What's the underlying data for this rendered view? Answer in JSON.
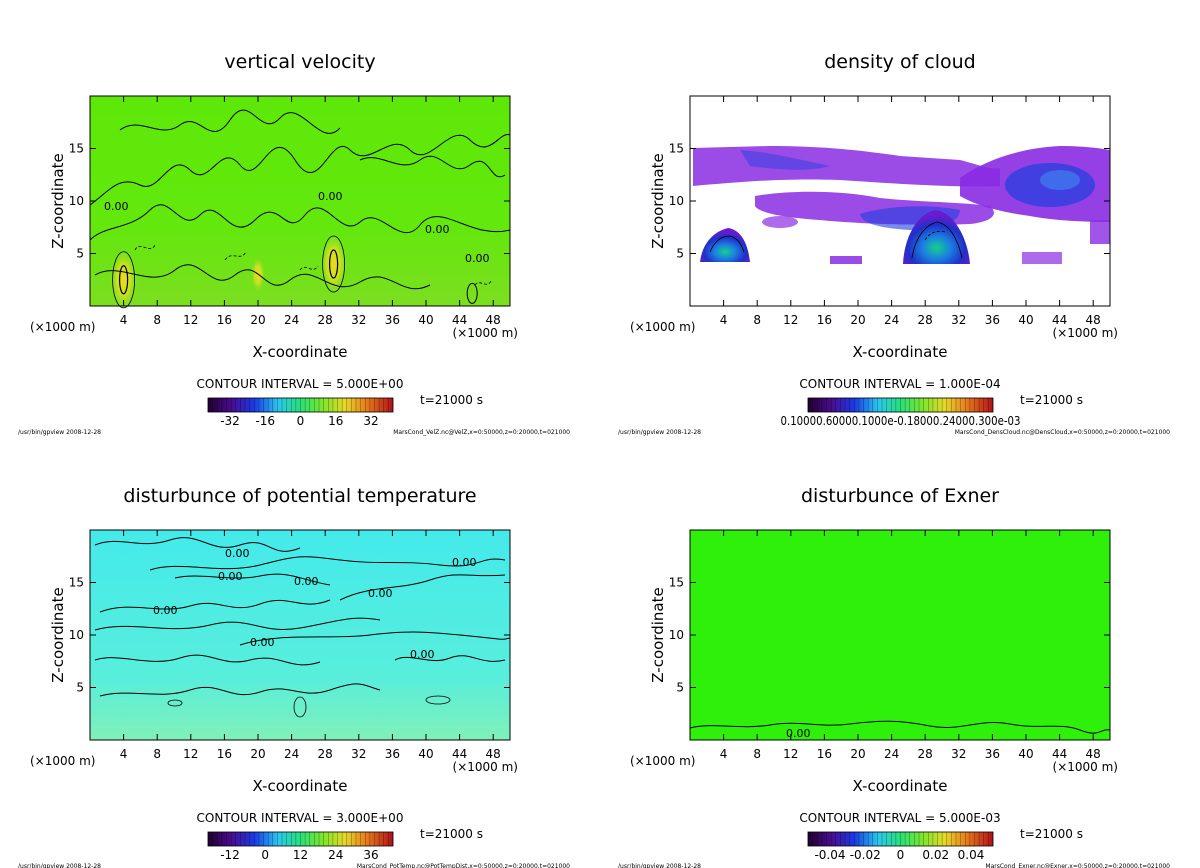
{
  "panels": [
    {
      "id": "velz",
      "title": "vertical velocity",
      "xlabel": "X-coordinate",
      "ylabel": "Z-coordinate",
      "x_unit": "(×1000 m)",
      "y_unit": "(×1000 m)",
      "contour_interval": "CONTOUR INTERVAL = 5.000E+00",
      "time": "t=21000 s",
      "footer_left": "/usr/bin/gpview  2008-12-28",
      "footer_right": "MarsCond_VelZ.nc@VelZ,x=0:50000,z=0:20000,t=021000",
      "colorbar_ticks": [
        "-32",
        "-16",
        "0",
        "16",
        "32"
      ],
      "contour_labels": [
        "0.00",
        "0.00",
        "0.00",
        "0.00"
      ]
    },
    {
      "id": "denscloud",
      "title": "density of cloud",
      "xlabel": "X-coordinate",
      "ylabel": "Z-coordinate",
      "x_unit": "(×1000 m)",
      "y_unit": "(×1000 m)",
      "contour_interval": "CONTOUR INTERVAL = 1.000E-04",
      "time": "t=21000 s",
      "footer_left": "/usr/bin/gpview  2008-12-28",
      "footer_right": "MarsCond_DensCloud.nc@DensCloud,x=0:50000,z=0:20000,t=021000",
      "colorbar_ticks_overlap": "0.10000.60000.1000e-0.18000.24000.300e-03",
      "contour_labels": []
    },
    {
      "id": "pottemp",
      "title": "disturbunce of potential temperature",
      "xlabel": "X-coordinate",
      "ylabel": "Z-coordinate",
      "x_unit": "(×1000 m)",
      "y_unit": "(×1000 m)",
      "contour_interval": "CONTOUR INTERVAL = 3.000E+00",
      "time": "t=21000 s",
      "footer_left": "/usr/bin/gpview  2008-12-28",
      "footer_right": "MarsCond_PotTemp.nc@PotTempDist,x=0:50000,z=0:20000,t=021000",
      "colorbar_ticks": [
        "-12",
        "0",
        "12",
        "24",
        "36"
      ],
      "contour_labels": [
        "0.00",
        "0.00",
        "0.00",
        "0.00",
        "0.00",
        "0.00",
        "0.00",
        "0.00"
      ]
    },
    {
      "id": "exner",
      "title": "disturbunce of Exner",
      "xlabel": "X-coordinate",
      "ylabel": "Z-coordinate",
      "x_unit": "(×1000 m)",
      "y_unit": "(×1000 m)",
      "contour_interval": "CONTOUR INTERVAL = 5.000E-03",
      "time": "t=21000 s",
      "footer_left": "/usr/bin/gpview  2008-12-28",
      "footer_right": "MarsCond_Exner.nc@Exner,x=0:50000,z=0:20000,t=021000",
      "colorbar_ticks": [
        "-0.04",
        "-0.02",
        "0",
        "0.02",
        "0.04"
      ],
      "contour_labels": [
        "0.00"
      ]
    }
  ],
  "chart_data": [
    {
      "type": "heatmap",
      "title": "vertical velocity",
      "xlabel": "X-coordinate",
      "ylabel": "Z-coordinate",
      "xlim": [
        0,
        50
      ],
      "ylim": [
        0,
        20
      ],
      "x_ticks": [
        4,
        8,
        12,
        16,
        20,
        24,
        28,
        32,
        36,
        40,
        44,
        48
      ],
      "y_ticks": [
        5,
        10,
        15
      ],
      "colorbar_ticks": [
        -32,
        -16,
        0,
        16,
        32
      ],
      "contour_interval": 5.0,
      "features": [
        {
          "kind": "updraft_core",
          "x": 4,
          "z": 2.5
        },
        {
          "kind": "updraft_core",
          "x": 29,
          "z": 4
        }
      ]
    },
    {
      "type": "heatmap",
      "title": "density of cloud",
      "xlabel": "X-coordinate",
      "ylabel": "Z-coordinate",
      "xlim": [
        0,
        50
      ],
      "ylim": [
        0,
        20
      ],
      "x_ticks": [
        4,
        8,
        12,
        16,
        20,
        24,
        28,
        32,
        36,
        40,
        44,
        48
      ],
      "y_ticks": [
        5,
        10,
        15
      ],
      "contour_interval": 0.0001
    },
    {
      "type": "heatmap",
      "title": "disturbunce of potential temperature",
      "xlabel": "X-coordinate",
      "ylabel": "Z-coordinate",
      "xlim": [
        0,
        50
      ],
      "ylim": [
        0,
        20
      ],
      "x_ticks": [
        4,
        8,
        12,
        16,
        20,
        24,
        28,
        32,
        36,
        40,
        44,
        48
      ],
      "y_ticks": [
        5,
        10,
        15
      ],
      "colorbar_ticks": [
        -12,
        0,
        12,
        24,
        36
      ],
      "contour_interval": 3.0
    },
    {
      "type": "heatmap",
      "title": "disturbunce of Exner",
      "xlabel": "X-coordinate",
      "ylabel": "Z-coordinate",
      "xlim": [
        0,
        50
      ],
      "ylim": [
        0,
        20
      ],
      "x_ticks": [
        4,
        8,
        12,
        16,
        20,
        24,
        28,
        32,
        36,
        40,
        44,
        48
      ],
      "y_ticks": [
        5,
        10,
        15
      ],
      "colorbar_ticks": [
        -0.04,
        -0.02,
        0,
        0.02,
        0.04
      ],
      "contour_interval": 0.005
    }
  ],
  "colors": {
    "velz_field": "#5ee80a",
    "pot_field": "#5ef0e6",
    "exner_field": "#2ef00a",
    "cloud_purple": "#8a2be2",
    "cloud_blue": "#1f3fe0"
  }
}
